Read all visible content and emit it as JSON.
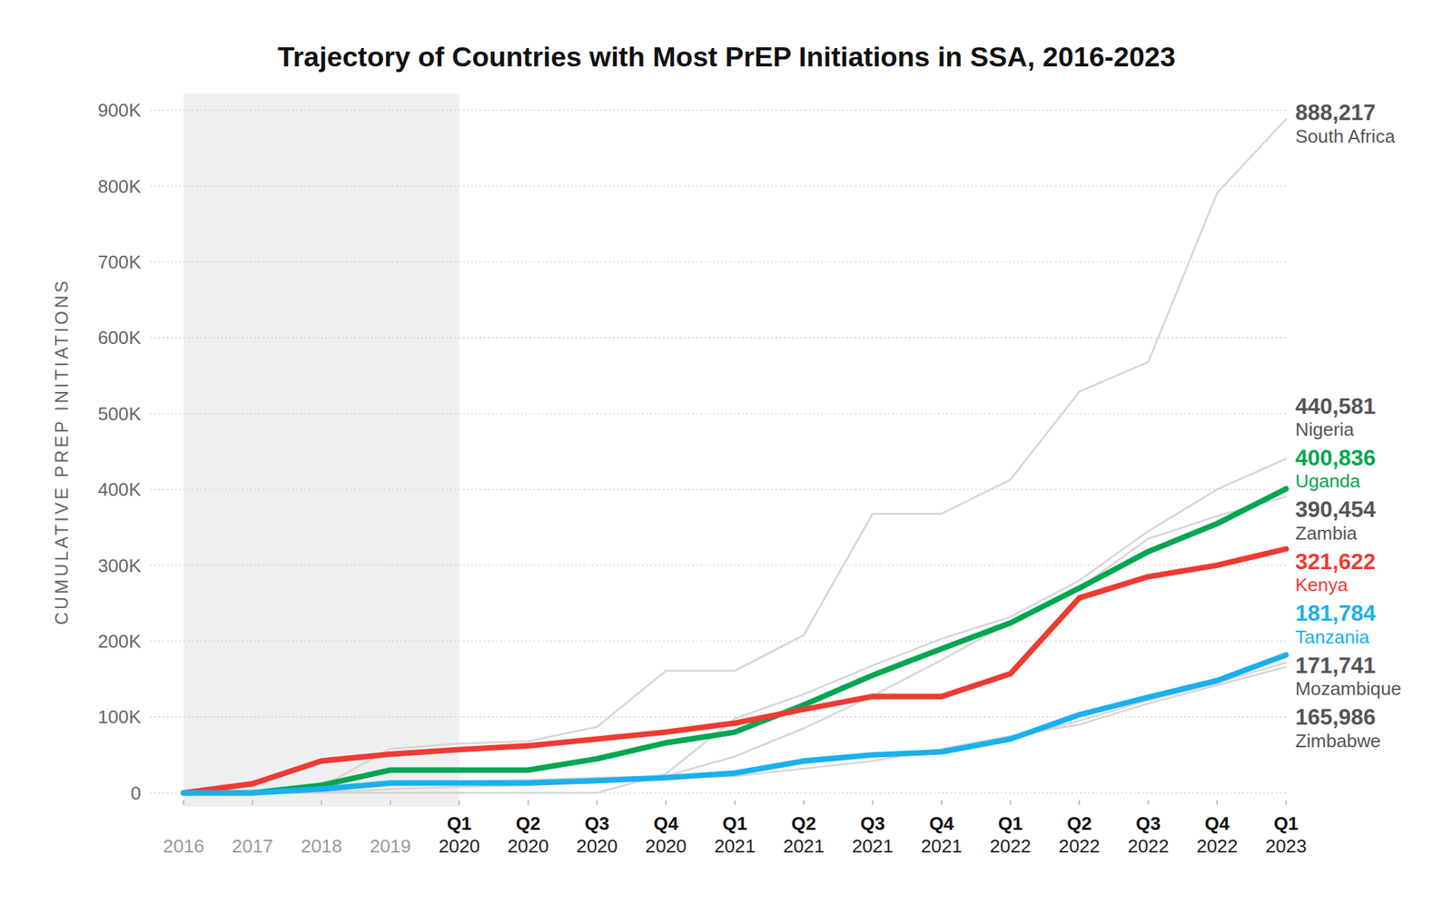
{
  "chart_data": {
    "type": "line",
    "title": "Trajectory of Countries with Most PrEP Initiations in SSA, 2016-2023",
    "y_label": "CUMULATIVE PREP INITIATIONS",
    "categories": [
      "2016",
      "2017",
      "2018",
      "2019",
      "Q1 2020",
      "Q2 2020",
      "Q3 2020",
      "Q4 2020",
      "Q1 2021",
      "Q2 2021",
      "Q3 2021",
      "Q4 2021",
      "Q1 2022",
      "Q2 2022",
      "Q3 2022",
      "Q4 2022",
      "Q1 2023"
    ],
    "ylim": [
      0,
      900000
    ],
    "yticks": [
      0,
      {
        "value": 100000,
        "label": "100K"
      },
      {
        "value": 200000,
        "label": "200K"
      },
      {
        "value": 300000,
        "label": "300K"
      },
      {
        "value": 400000,
        "label": "400K"
      },
      {
        "value": 500000,
        "label": "500K"
      },
      {
        "value": 600000,
        "label": "600K"
      },
      {
        "value": 700000,
        "label": "700K"
      },
      {
        "value": 800000,
        "label": "800K"
      },
      {
        "value": 900000,
        "label": "900K"
      }
    ],
    "grid": true,
    "data_labels": true,
    "series": [
      {
        "name": "South Africa",
        "color": "#d5d5d5",
        "values": [
          0,
          2000,
          8000,
          58000,
          65000,
          68000,
          87000,
          161000,
          161000,
          208000,
          368000,
          368000,
          413000,
          529000,
          568000,
          791000,
          888217
        ],
        "value_labels": [
          null,
          null,
          null,
          null,
          null,
          null,
          null,
          null,
          null,
          null,
          null,
          null,
          null,
          null,
          null,
          null,
          "888,217"
        ]
      },
      {
        "name": "Nigeria",
        "color": "#d5d5d5",
        "values": [
          0,
          0,
          0,
          0,
          0,
          0,
          0,
          25000,
          98000,
          130000,
          168000,
          203000,
          232000,
          280000,
          345000,
          400000,
          440581
        ],
        "value_labels": [
          null,
          null,
          null,
          null,
          null,
          null,
          null,
          null,
          null,
          null,
          null,
          null,
          null,
          null,
          null,
          null,
          "440,581"
        ]
      },
      {
        "name": "Zambia",
        "color": "#d5d5d5",
        "values": [
          0,
          0,
          2000,
          10000,
          15000,
          17000,
          20000,
          22000,
          48000,
          85000,
          128000,
          175000,
          225000,
          270000,
          335000,
          365000,
          390454
        ],
        "value_labels": [
          null,
          null,
          null,
          null,
          null,
          null,
          null,
          null,
          null,
          null,
          null,
          null,
          null,
          null,
          null,
          null,
          "390,454"
        ]
      },
      {
        "name": "Mozambique",
        "color": "#d5d5d5",
        "values": [
          0,
          0,
          0,
          5000,
          8000,
          10000,
          14000,
          18000,
          25000,
          40000,
          48000,
          55000,
          72000,
          95000,
          122000,
          145000,
          171741
        ],
        "value_labels": [
          null,
          null,
          null,
          null,
          null,
          null,
          null,
          null,
          null,
          null,
          null,
          null,
          null,
          null,
          null,
          null,
          "171,741"
        ]
      },
      {
        "name": "Zimbabwe",
        "color": "#d5d5d5",
        "values": [
          0,
          0,
          3000,
          10000,
          12000,
          13000,
          16000,
          20000,
          22000,
          32000,
          42000,
          58000,
          75000,
          90000,
          118000,
          142000,
          165986
        ],
        "value_labels": [
          null,
          null,
          null,
          null,
          null,
          null,
          null,
          null,
          null,
          null,
          null,
          null,
          null,
          null,
          null,
          null,
          "165,986"
        ]
      },
      {
        "name": "Uganda",
        "color": "#00a651",
        "values": [
          0,
          0,
          10000,
          30000,
          30000,
          30000,
          45000,
          66000,
          80000,
          116000,
          155000,
          190000,
          224000,
          270000,
          318000,
          355000,
          400836
        ],
        "value_labels": [
          null,
          null,
          null,
          null,
          null,
          null,
          null,
          null,
          null,
          null,
          null,
          null,
          null,
          null,
          null,
          null,
          "400,836"
        ]
      },
      {
        "name": "Kenya",
        "color": "#ee3b33",
        "values": [
          0,
          12000,
          42000,
          51000,
          57000,
          62000,
          71000,
          80000,
          92000,
          110000,
          127000,
          127000,
          157000,
          257000,
          285000,
          300000,
          321622
        ],
        "value_labels": [
          null,
          null,
          null,
          null,
          null,
          null,
          null,
          null,
          null,
          null,
          null,
          null,
          null,
          null,
          null,
          null,
          "321,622"
        ]
      },
      {
        "name": "Tanzania",
        "color": "#1ab0ee",
        "values": [
          0,
          0,
          5000,
          13000,
          13000,
          13000,
          16000,
          20000,
          26000,
          42000,
          50000,
          54000,
          71000,
          103000,
          126000,
          148000,
          181784
        ],
        "value_labels": [
          null,
          null,
          null,
          null,
          null,
          null,
          null,
          null,
          null,
          null,
          null,
          null,
          null,
          null,
          null,
          null,
          "181,784"
        ]
      }
    ]
  }
}
